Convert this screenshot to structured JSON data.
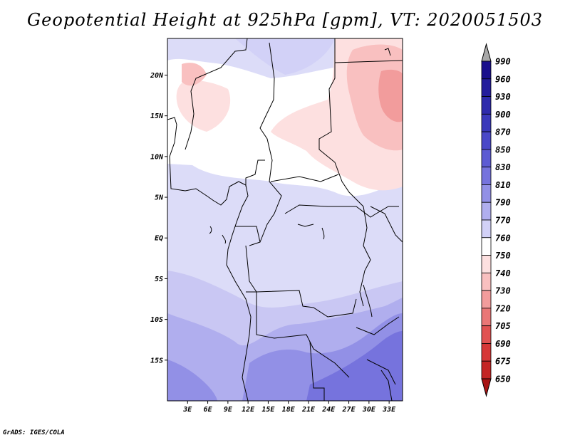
{
  "title": "Geopotential Height at 925hPa [gpm], VT: 2020051503",
  "credit": "GrADS: IGES/COLA",
  "map": {
    "lat_labels": [
      "20N",
      "15N",
      "10N",
      "5N",
      "EQ",
      "5S",
      "10S",
      "15S"
    ],
    "lon_labels": [
      "3E",
      "6E",
      "9E",
      "12E",
      "15E",
      "18E",
      "21E",
      "24E",
      "27E",
      "30E",
      "33E"
    ],
    "lat_range": [
      -20,
      24.5
    ],
    "lon_range": [
      0,
      35
    ]
  },
  "colorbar": {
    "levels": [
      "990",
      "960",
      "930",
      "900",
      "870",
      "850",
      "830",
      "810",
      "790",
      "770",
      "760",
      "750",
      "740",
      "730",
      "720",
      "705",
      "690",
      "675",
      "650"
    ],
    "colors": [
      "#1a0f8c",
      "#241c9c",
      "#2e2aac",
      "#3a38bb",
      "#4a48c8",
      "#5d5bd3",
      "#7673dd",
      "#9290e6",
      "#b0aeee",
      "#d2d1f7",
      "#ffffff",
      "#fde0e0",
      "#f9c0c0",
      "#f29c9c",
      "#ea7777",
      "#e15252",
      "#d63737",
      "#c42525",
      "#a81414"
    ],
    "top_arrow_color": "#a8a8a8",
    "bottom_arrow_color": "#a81414"
  }
}
